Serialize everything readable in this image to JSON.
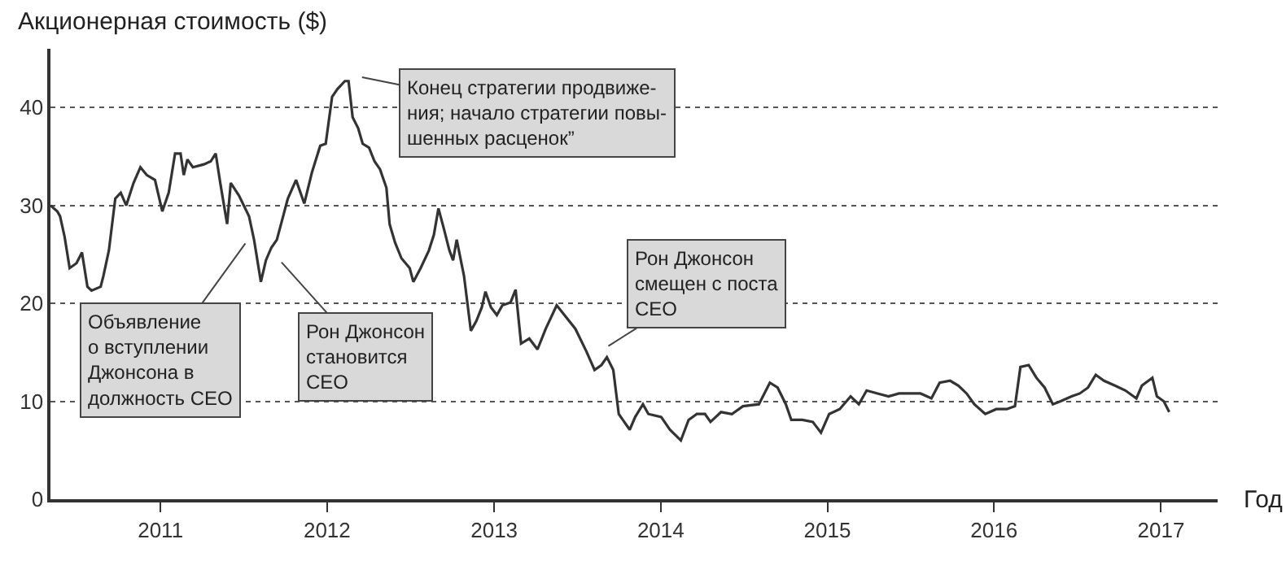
{
  "chart_data": {
    "type": "line",
    "ylabel": "Акционерная стоимость ($)",
    "xlabel": "Год",
    "x": [
      "2010-05-05",
      "2010-05-20",
      "2010-05-26",
      "2010-06-05",
      "2010-06-16",
      "2010-07-01",
      "2010-07-13",
      "2010-07-25",
      "2010-08-03",
      "2010-08-23",
      "2010-08-29",
      "2010-09-10",
      "2010-09-24",
      "2010-10-06",
      "2010-10-18",
      "2010-11-03",
      "2010-11-18",
      "2010-12-02",
      "2010-12-20",
      "2011-01-05",
      "2011-01-19",
      "2011-02-02",
      "2011-02-14",
      "2011-02-21",
      "2011-03-01",
      "2011-03-13",
      "2011-04-06",
      "2011-04-21",
      "2011-05-02",
      "2011-05-12",
      "2011-05-27",
      "2011-06-04",
      "2011-06-22",
      "2011-07-14",
      "2011-07-25",
      "2011-08-09",
      "2011-08-20",
      "2011-09-01",
      "2011-09-13",
      "2011-09-25",
      "2011-10-07",
      "2011-10-25",
      "2011-11-12",
      "2011-11-29",
      "2011-12-17",
      "2011-12-29",
      "2012-01-12",
      "2012-01-24",
      "2012-02-09",
      "2012-02-17",
      "2012-02-26",
      "2012-03-09",
      "2012-03-19",
      "2012-04-02",
      "2012-04-14",
      "2012-04-26",
      "2012-05-10",
      "2012-05-17",
      "2012-05-29",
      "2012-06-12",
      "2012-06-30",
      "2012-07-08",
      "2012-07-24",
      "2012-08-11",
      "2012-08-22",
      "2012-09-01",
      "2012-09-13",
      "2012-09-25",
      "2012-10-03",
      "2012-10-11",
      "2012-10-27",
      "2012-11-11",
      "2012-11-23",
      "2012-12-05",
      "2012-12-13",
      "2012-12-25",
      "2013-01-07",
      "2013-01-19",
      "2013-02-06",
      "2013-02-17",
      "2013-03-01",
      "2013-03-19",
      "2013-04-06",
      "2013-04-24",
      "2013-05-18",
      "2013-06-04",
      "2013-06-28",
      "2013-07-22",
      "2013-08-09",
      "2013-08-24",
      "2013-09-05",
      "2013-09-19",
      "2013-10-01",
      "2013-10-13",
      "2013-10-25",
      "2013-11-06",
      "2013-11-23",
      "2013-12-05",
      "2014-01-02",
      "2014-01-21",
      "2014-02-14",
      "2014-03-03",
      "2014-03-21",
      "2014-04-08",
      "2014-04-20",
      "2014-05-13",
      "2014-06-06",
      "2014-06-30",
      "2014-08-04",
      "2014-08-28",
      "2014-09-14",
      "2014-10-02",
      "2014-10-14",
      "2014-11-07",
      "2014-11-30",
      "2014-12-18",
      "2015-01-05",
      "2015-01-28",
      "2015-02-21",
      "2015-03-11",
      "2015-03-28",
      "2015-04-21",
      "2015-05-15",
      "2015-06-07",
      "2015-07-01",
      "2015-07-24",
      "2015-08-17",
      "2015-09-04",
      "2015-09-27",
      "2015-10-15",
      "2015-11-02",
      "2015-11-19",
      "2015-12-13",
      "2016-01-06",
      "2016-01-29",
      "2016-02-16",
      "2016-02-28",
      "2016-03-17",
      "2016-04-03",
      "2016-04-21",
      "2016-05-09",
      "2016-05-26",
      "2016-06-19",
      "2016-07-07",
      "2016-07-25",
      "2016-08-11",
      "2016-08-29",
      "2016-09-22",
      "2016-10-15",
      "2016-11-08",
      "2016-11-20",
      "2016-12-13",
      "2016-12-23",
      "2017-01-07",
      "2017-01-19"
    ],
    "series": [
      {
        "color": "#333333",
        "values": [
          30.0,
          29.4,
          28.9,
          26.8,
          23.6,
          24.1,
          25.2,
          21.7,
          21.3,
          21.7,
          22.8,
          25.4,
          30.7,
          31.3,
          30.0,
          32.3,
          33.9,
          33.1,
          32.6,
          29.4,
          31.3,
          35.3,
          35.3,
          33.1,
          34.7,
          33.9,
          34.2,
          34.5,
          35.3,
          32.3,
          28.1,
          32.3,
          31.0,
          28.9,
          26.5,
          22.2,
          24.4,
          25.7,
          26.5,
          28.6,
          30.7,
          32.6,
          30.2,
          33.4,
          36.1,
          36.3,
          41.1,
          41.9,
          42.7,
          42.7,
          39.0,
          37.9,
          36.3,
          35.9,
          34.5,
          33.7,
          31.8,
          28.1,
          26.2,
          24.6,
          23.6,
          22.2,
          23.6,
          25.4,
          27.0,
          29.7,
          27.6,
          25.4,
          24.4,
          26.5,
          22.8,
          17.2,
          18.2,
          19.6,
          21.2,
          19.6,
          18.8,
          19.8,
          20.1,
          21.4,
          15.9,
          16.4,
          15.3,
          17.4,
          19.8,
          18.8,
          17.4,
          15.1,
          13.2,
          13.7,
          14.5,
          13.2,
          8.7,
          7.9,
          7.1,
          8.4,
          9.7,
          8.7,
          8.4,
          7.1,
          6.0,
          8.1,
          8.7,
          8.7,
          7.9,
          8.9,
          8.7,
          9.5,
          9.7,
          11.9,
          11.4,
          9.7,
          8.1,
          8.1,
          7.9,
          6.8,
          8.7,
          9.2,
          10.5,
          9.7,
          11.1,
          10.8,
          10.5,
          10.8,
          10.8,
          10.8,
          10.3,
          11.9,
          12.1,
          11.6,
          10.8,
          9.7,
          8.7,
          9.2,
          9.2,
          9.5,
          13.5,
          13.7,
          12.4,
          11.4,
          9.7,
          10.0,
          10.5,
          10.8,
          11.4,
          12.7,
          12.1,
          11.6,
          11.1,
          10.3,
          11.6,
          12.4,
          10.5,
          10.0,
          8.9
        ]
      }
    ],
    "xlim": [
      "2010-05-05",
      "2017-05-05"
    ],
    "xticks": [
      {
        "value": "2011-01-01",
        "label": "2011"
      },
      {
        "value": "2012-01-01",
        "label": "2012"
      },
      {
        "value": "2013-01-01",
        "label": "2013"
      },
      {
        "value": "2014-01-01",
        "label": "2014"
      },
      {
        "value": "2015-01-01",
        "label": "2015"
      },
      {
        "value": "2016-01-01",
        "label": "2016"
      },
      {
        "value": "2017-01-01",
        "label": "2017"
      }
    ],
    "ylim": [
      0,
      46
    ],
    "yticks": [
      0,
      10,
      20,
      30,
      40
    ],
    "grid": "y",
    "legend": false,
    "marker": "none",
    "line_style": "solid",
    "annotations": [
      "Объявление\nо вступлении\nДжонсона в\nдолжность CEO",
      "Рон Джонсон\nстановится\nCEO",
      "Конец стратегии продвиже-\nния; начало стратегии повы-\nшенных расценок”",
      "Рон Джонсон\nсмещен с поста\nCEO"
    ]
  }
}
